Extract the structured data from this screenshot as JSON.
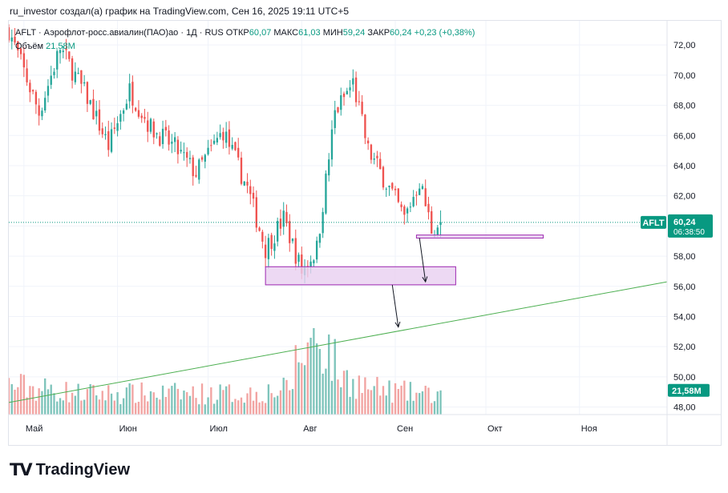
{
  "caption": "ru_investor создал(а) график на TradingView.com, Сен 16, 2025 19:11 UTC+5",
  "legend": {
    "symbol": "AFLT",
    "name": "Аэрофлот-росс.авиалин(ПАО)ао",
    "interval": "1Д",
    "exchange": "RUS",
    "open_label": "ОТКР",
    "open": "60,07",
    "high_label": "МАКС",
    "high": "61,03",
    "low_label": "МИН",
    "low": "59,24",
    "close_label": "ЗАКР",
    "close": "60,24",
    "change": "+0,23 (+0,38%)",
    "volume_label": "Объём",
    "volume": "21,58M"
  },
  "price_badge": {
    "symbol": "AFLT",
    "price": "60,24",
    "countdown": "06:38:50"
  },
  "volume_badge": "21,58M",
  "logo": {
    "mark": "TV",
    "text": "TradingView"
  },
  "colors": {
    "up": "#26a69a",
    "down": "#ef5350",
    "up_volume": "#7ec4bb",
    "down_volume": "#f2a4a2",
    "trendline": "#4caf50",
    "zone_fill": "#e9cff0",
    "zone_border": "#9c27b0",
    "price_line": "#089981"
  },
  "chart_data": {
    "type": "candlestick",
    "symbol": "AFLT",
    "interval": "1D",
    "y_ticks": [
      "48,00",
      "50,00",
      "52,00",
      "54,00",
      "56,00",
      "58,00",
      "60,00",
      "62,00",
      "64,00",
      "66,00",
      "68,00",
      "70,00",
      "72,00"
    ],
    "ylim": [
      47.5,
      73.6
    ],
    "x_ticks": [
      {
        "label": "Май",
        "date": "2025-05-01"
      },
      {
        "label": "Июн",
        "date": "2025-06-01"
      },
      {
        "label": "Июл",
        "date": "2025-07-01"
      },
      {
        "label": "Авг",
        "date": "2025-08-01"
      },
      {
        "label": "Сен",
        "date": "2025-09-01"
      },
      {
        "label": "Окт",
        "date": "2025-10-01"
      },
      {
        "label": "Ноя",
        "date": "2025-11-01"
      }
    ],
    "xlim": [
      "2025-04-26",
      "2025-11-30"
    ],
    "price_key_points": [
      [
        "2025-04-26",
        73.0
      ],
      [
        "2025-05-06",
        67.5
      ],
      [
        "2025-05-13",
        71.8
      ],
      [
        "2025-05-22",
        68.5
      ],
      [
        "2025-05-29",
        65.3
      ],
      [
        "2025-06-05",
        69.0
      ],
      [
        "2025-06-12",
        66.5
      ],
      [
        "2025-06-20",
        65.2
      ],
      [
        "2025-06-27",
        63.5
      ],
      [
        "2025-07-06",
        66.3
      ],
      [
        "2025-07-14",
        62.5
      ],
      [
        "2025-07-20",
        58.5
      ],
      [
        "2025-07-26",
        60.5
      ],
      [
        "2025-08-01",
        57.0
      ],
      [
        "2025-08-06",
        58.5
      ],
      [
        "2025-08-12",
        67.5
      ],
      [
        "2025-08-18",
        69.5
      ],
      [
        "2025-08-23",
        65.0
      ],
      [
        "2025-08-30",
        62.5
      ],
      [
        "2025-09-04",
        60.5
      ],
      [
        "2025-09-09",
        63.0
      ],
      [
        "2025-09-13",
        59.8
      ],
      [
        "2025-09-16",
        60.24
      ]
    ],
    "volume_key_points": [
      [
        "2025-04-26",
        0.35
      ],
      [
        "2025-05-20",
        0.25
      ],
      [
        "2025-06-15",
        0.25
      ],
      [
        "2025-07-15",
        0.25
      ],
      [
        "2025-07-28",
        0.3
      ],
      [
        "2025-07-30",
        0.6
      ],
      [
        "2025-08-06",
        0.95
      ],
      [
        "2025-08-10",
        0.75
      ],
      [
        "2025-08-14",
        0.45
      ],
      [
        "2025-08-25",
        0.3
      ],
      [
        "2025-09-16",
        0.22
      ]
    ],
    "last_candle": {
      "date": "2025-09-16",
      "open": 60.07,
      "high": 61.03,
      "low": 59.24,
      "close": 60.24,
      "volume": "21,58M"
    },
    "volume_scale": {
      "max_M": 100
    },
    "annotations": {
      "trendline": [
        [
          "2025-04-26",
          48.3
        ],
        [
          "2025-11-30",
          56.3
        ]
      ],
      "zones": [
        {
          "x": [
            "2025-07-20",
            "2025-09-21"
          ],
          "y": [
            56.1,
            57.3
          ]
        },
        {
          "x": [
            "2025-09-08",
            "2025-10-20"
          ],
          "y": [
            59.2,
            59.4
          ]
        }
      ],
      "arrows": [
        [
          [
            "2025-09-09",
            59.2
          ],
          [
            "2025-09-11",
            56.3
          ]
        ],
        [
          [
            "2025-08-31",
            56.1
          ],
          [
            "2025-09-02",
            53.3
          ]
        ]
      ]
    }
  }
}
